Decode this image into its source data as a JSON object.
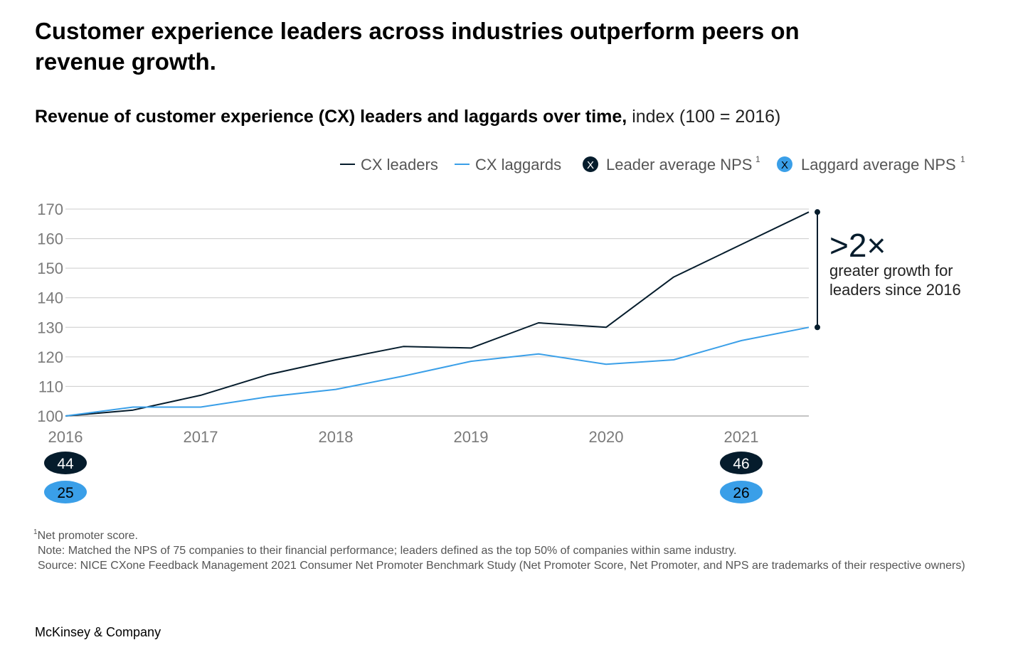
{
  "title": "Customer experience leaders across industries outperform peers on revenue growth.",
  "subtitle_bold": "Revenue of customer experience (CX) leaders and laggards over time,",
  "subtitle_rest": " index (100 = 2016)",
  "legend": {
    "leaders": "CX leaders",
    "laggards": "CX laggards",
    "leader_nps": "Leader average NPS",
    "laggard_nps": "Laggard average NPS",
    "marker_glyph": "X",
    "superscript": "1"
  },
  "colors": {
    "leaders": "#051c2c",
    "laggards": "#3a9fe8",
    "grid": "#cccccc",
    "axis_text": "#7a7a7a"
  },
  "chart_data": {
    "type": "line",
    "title": "Revenue of customer experience (CX) leaders and laggards over time",
    "ylabel": "index (100 = 2016)",
    "ylim": [
      100,
      170
    ],
    "yticks": [
      100,
      110,
      120,
      130,
      140,
      150,
      160,
      170
    ],
    "xlim": [
      2016,
      2021.5
    ],
    "xticks": [
      "2016",
      "2017",
      "2018",
      "2019",
      "2020",
      "2021"
    ],
    "grid": true,
    "legend_position": "top-right",
    "series": [
      {
        "name": "CX leaders",
        "key": "leaders",
        "x": [
          2016,
          2016.5,
          2017,
          2017.5,
          2018,
          2018.5,
          2019,
          2019.5,
          2020,
          2020.5,
          2021,
          2021.5
        ],
        "values": [
          100,
          102,
          107,
          114,
          119,
          123.5,
          123,
          131.5,
          130,
          147,
          158,
          169
        ]
      },
      {
        "name": "CX laggards",
        "key": "laggards",
        "x": [
          2016,
          2016.5,
          2017,
          2017.5,
          2018,
          2018.5,
          2019,
          2019.5,
          2020,
          2020.5,
          2021,
          2021.5
        ],
        "values": [
          100,
          103,
          103,
          106.5,
          109,
          113.5,
          118.5,
          121,
          117.5,
          119,
          125.5,
          130
        ]
      }
    ],
    "nps": [
      {
        "year": "2016",
        "leader": "44",
        "laggard": "25"
      },
      {
        "year": "2021",
        "leader": "46",
        "laggard": "26"
      }
    ],
    "annotation": {
      "headline": ">2×",
      "line1": "greater growth for",
      "line2": "leaders since 2016",
      "from": 130,
      "to": 169
    }
  },
  "footnotes": {
    "superscript": "1",
    "nps_def": "Net promoter score.",
    "note": "Note: Matched the NPS of 75 companies to their financial performance; leaders defined as the top 50% of companies within same industry.",
    "source": "Source: NICE CXone Feedback Management 2021 Consumer Net Promoter Benchmark Study (Net Promoter Score, Net Promoter, and NPS are trademarks of their respective owners)"
  },
  "brand": "McKinsey & Company"
}
